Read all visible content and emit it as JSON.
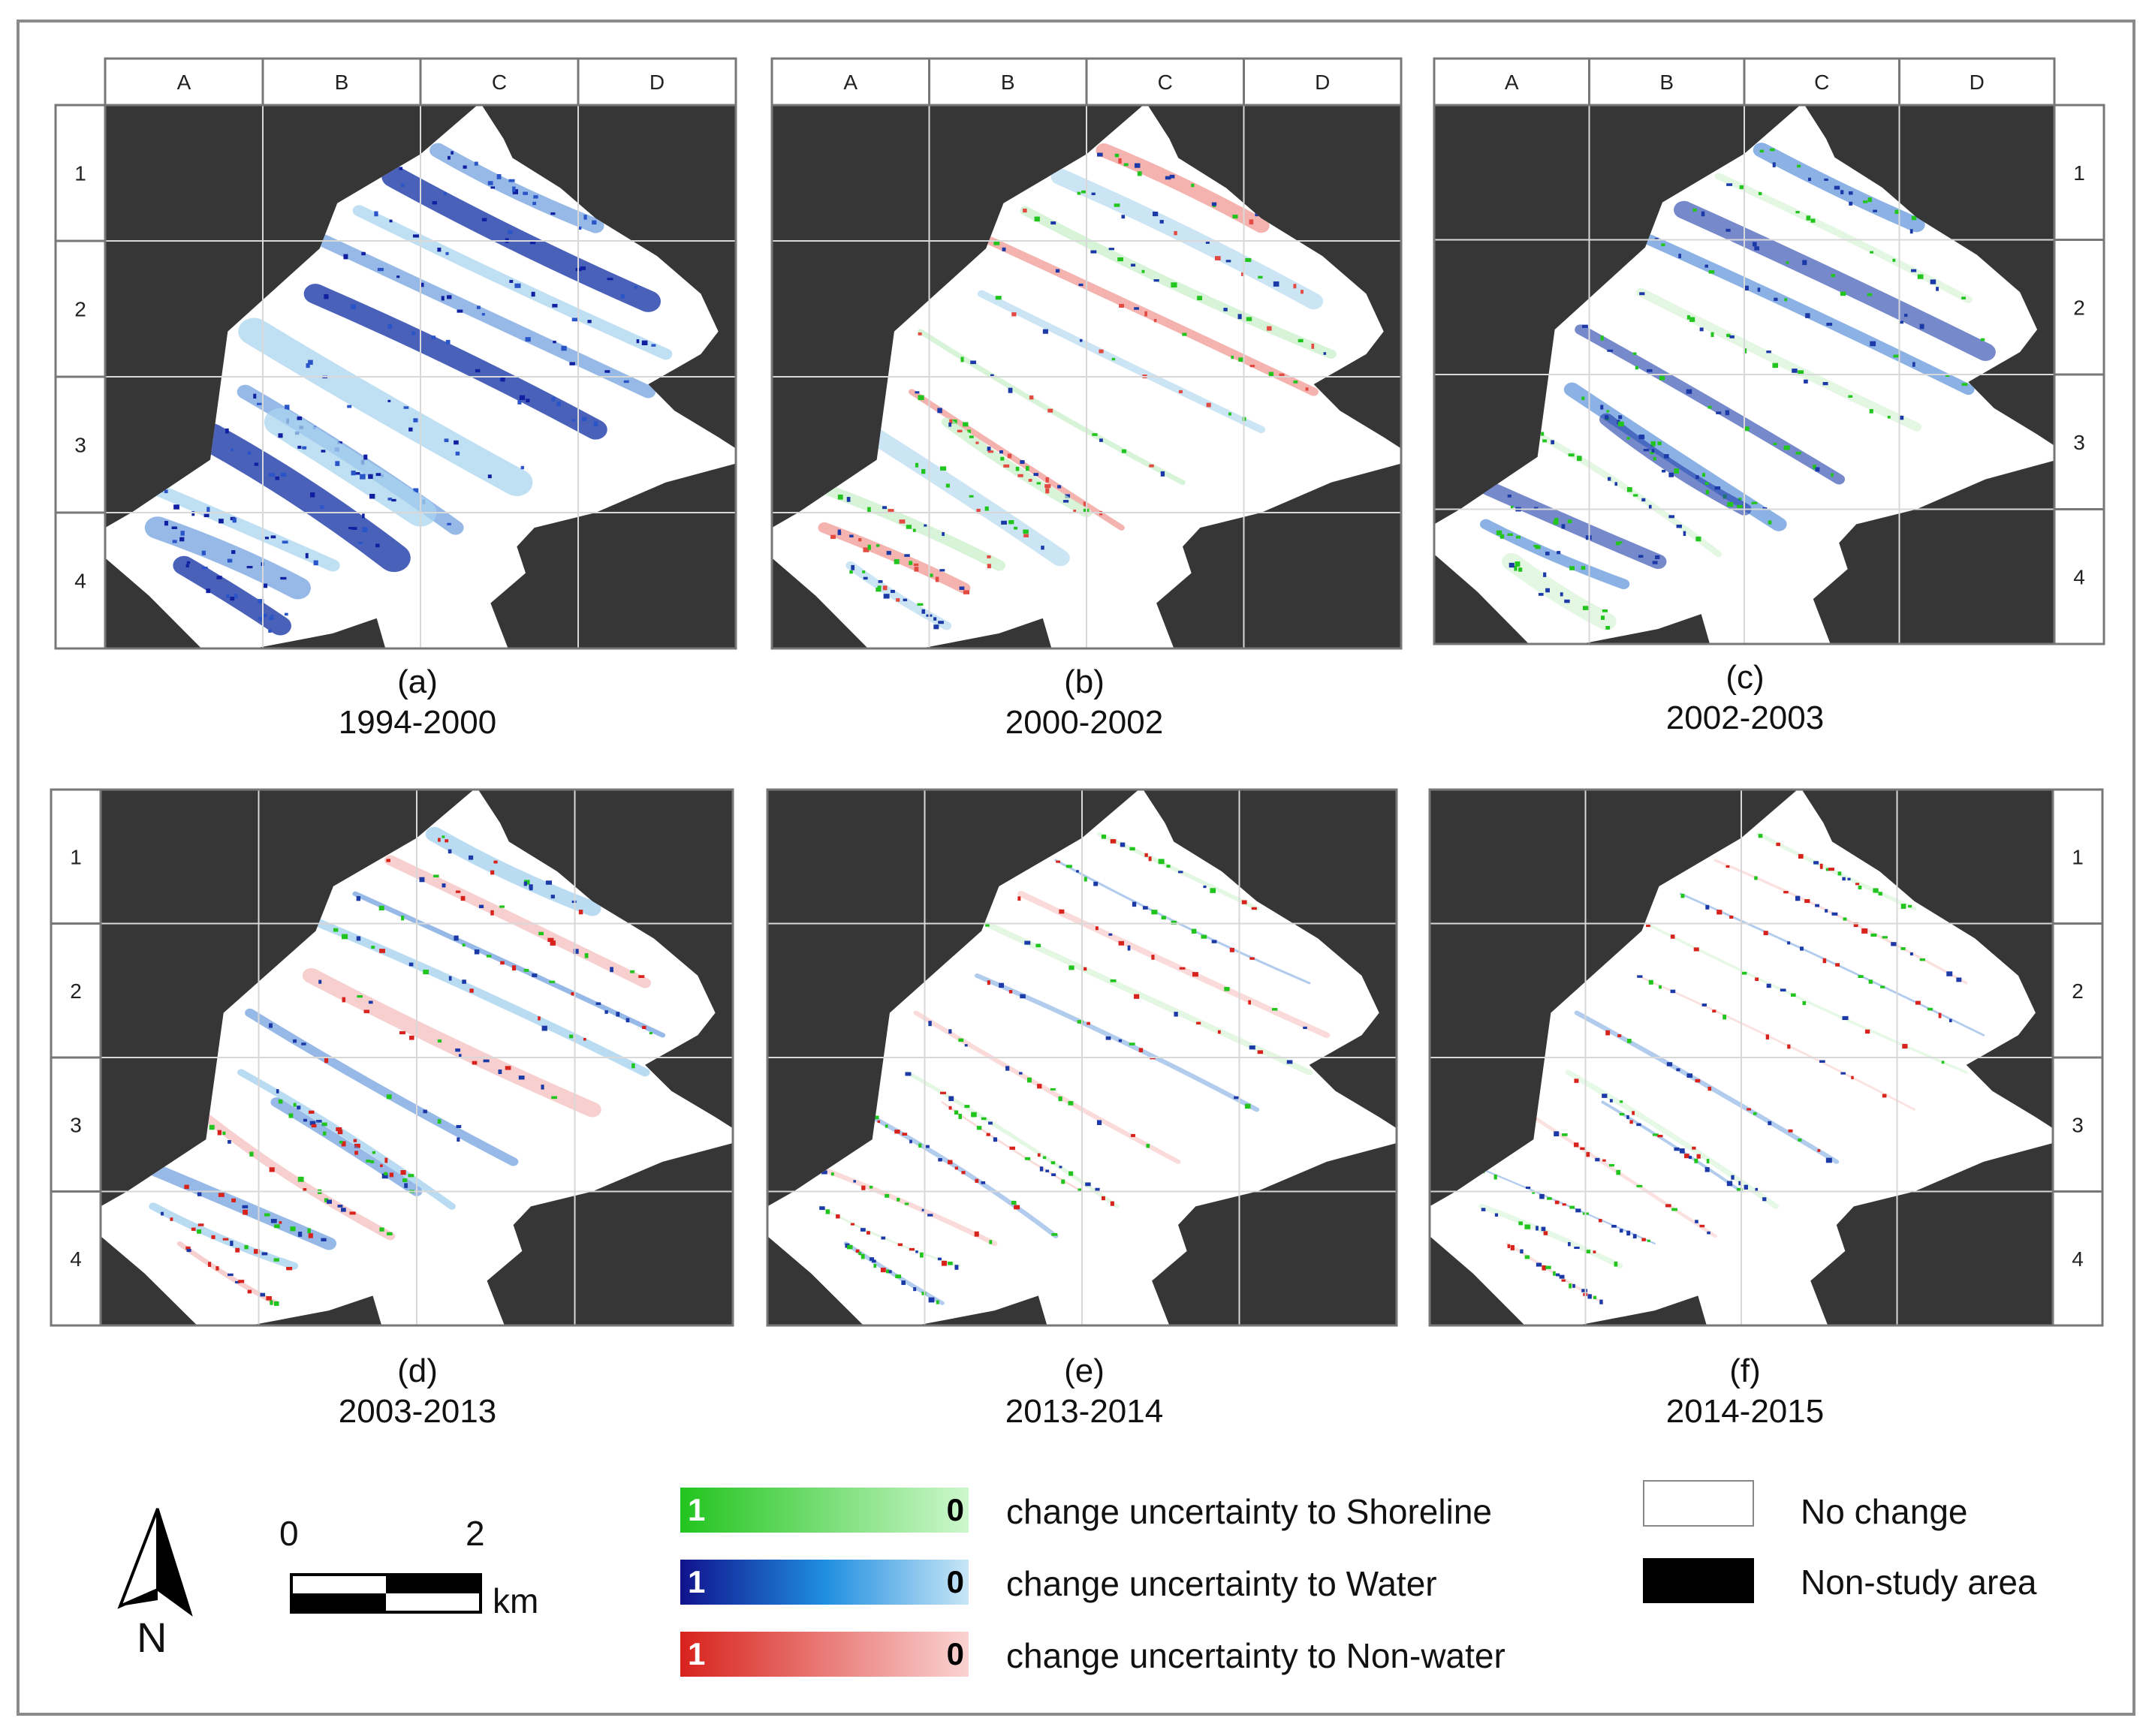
{
  "panels": [
    {
      "id": "a",
      "label": "(a)",
      "period": "1994-2000"
    },
    {
      "id": "b",
      "label": "(b)",
      "period": "2000-2002"
    },
    {
      "id": "c",
      "label": "(c)",
      "period": "2002-2003"
    },
    {
      "id": "d",
      "label": "(d)",
      "period": "2003-2013"
    },
    {
      "id": "e",
      "label": "(e)",
      "period": "2013-2014"
    },
    {
      "id": "f",
      "label": "(f)",
      "period": "2014-2015"
    }
  ],
  "grid": {
    "columns": [
      "A",
      "B",
      "C",
      "D"
    ],
    "rows": [
      "1",
      "2",
      "3",
      "4"
    ]
  },
  "legend": {
    "shoreline": {
      "high": "1",
      "low": "0",
      "label": "change uncertainty to Shoreline",
      "color_high": "#22c41e",
      "color_low": "#cdf7cd"
    },
    "water": {
      "high": "1",
      "low": "0",
      "label": "change uncertainty to Water",
      "color_high": "#10128c",
      "color_low": "#c8e6f6"
    },
    "nonwater": {
      "high": "1",
      "low": "0",
      "label": "change uncertainty to Non-water",
      "color_high": "#d8221c",
      "color_low": "#fad3d2"
    },
    "no_change": {
      "label": "No change"
    },
    "non_study": {
      "label": "Non-study area"
    }
  },
  "scale_bar": {
    "start": "0",
    "end": "2",
    "unit": "km"
  },
  "north_arrow": {
    "label": "N"
  },
  "colors": {
    "non_study": "#363636",
    "study": "#ffffff",
    "grid": "#d8d8d8"
  }
}
